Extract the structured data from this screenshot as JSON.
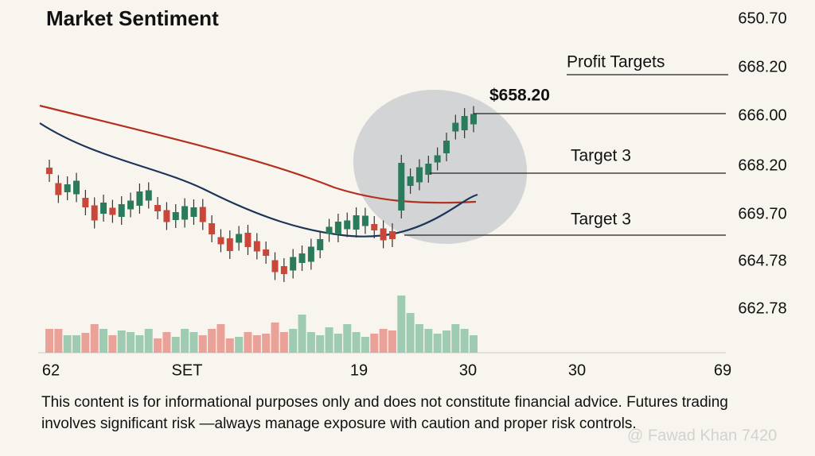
{
  "title": "Market Sentiment",
  "y_axis_labels": [
    "650.70",
    "668.20",
    "666.00",
    "668.20",
    "669.70",
    "664.78",
    "662.78"
  ],
  "x_axis_labels": [
    "62",
    "SET",
    "19",
    "30",
    "30",
    "69"
  ],
  "annotations": {
    "profit_targets": "Profit Targets",
    "price": "$658.20",
    "target_upper": "Target 3",
    "target_lower": "Target 3"
  },
  "disclaimer": [
    "This content is for informational purposes only and does not constitute financial advice. Futures trading",
    "involves significant risk —always manage exposure with caution and proper risk controls."
  ],
  "watermark": "@ Fawad Khan 7420"
}
